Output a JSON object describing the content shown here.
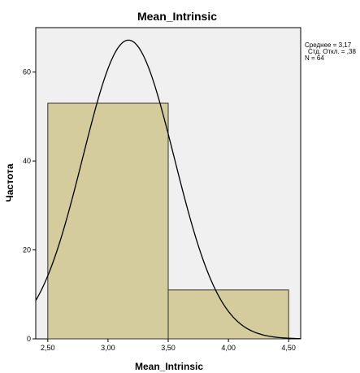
{
  "chart_data": {
    "type": "histogram",
    "title": "Mean_Intrinsic",
    "xlabel": "Mean_Intrinsic",
    "ylabel": "Частота",
    "xlim": [
      2.4,
      4.6
    ],
    "ylim": [
      0,
      70
    ],
    "x_ticks": [
      {
        "value": 2.5,
        "label": "2,50"
      },
      {
        "value": 3.0,
        "label": "3,00"
      },
      {
        "value": 3.5,
        "label": "3,50"
      },
      {
        "value": 4.0,
        "label": "4,00"
      },
      {
        "value": 4.5,
        "label": "4,50"
      }
    ],
    "y_ticks": [
      {
        "value": 0,
        "label": "0"
      },
      {
        "value": 20,
        "label": "20"
      },
      {
        "value": 40,
        "label": "40"
      },
      {
        "value": 60,
        "label": "60"
      }
    ],
    "bins": [
      {
        "start": 2.5,
        "end": 3.5,
        "count": 53
      },
      {
        "start": 3.5,
        "end": 4.5,
        "count": 11
      }
    ],
    "normal_curve": {
      "mean": 3.17,
      "std": 0.38,
      "n": 64,
      "bin_width": 1.0
    },
    "stats_lines": [
      "Среднее = 3,17",
      "Стд. Откл. = ,38",
      "N = 64"
    ],
    "colors": {
      "bar_fill": "#d4cc9c",
      "bar_stroke": "#333333",
      "plot_background": "#f0f0f0",
      "curve": "#000000",
      "frame": "#000000"
    },
    "grid": false,
    "stats_placement": "right"
  }
}
